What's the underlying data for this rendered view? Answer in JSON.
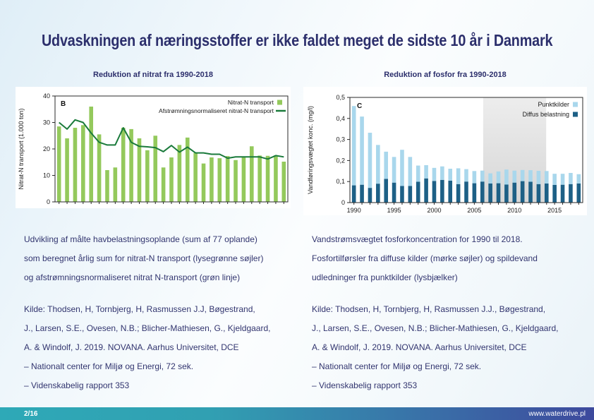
{
  "title": "Udvaskningen af næringsstoffer er ikke faldet meget de sidste 10 år i Danmark",
  "left": {
    "subtitle": "Reduktion af nitrat fra 1990-2018",
    "caption_lines": [
      "Udvikling af målte havbelastningsoplande (sum af 77 oplande)",
      "som beregnet årlig sum for nitrat-N transport (lysegrønne søjler)",
      "og afstrømningsnormaliseret nitrat N-transport (grøn linje)"
    ],
    "source_lines": [
      "Kilde: Thodsen, H, Tornbjerg, H, Rasmussen J.J, Bøgestrand,",
      "J., Larsen, S.E., Ovesen, N.B.; Blicher-Mathiesen, G., Kjeldgaard,",
      "A. & Windolf, J. 2019. NOVANA. Aarhus Universitet, DCE",
      "– Nationalt center for Miljø og Energi, 72 sek.",
      "– Videnskabelig rapport 353"
    ]
  },
  "right": {
    "subtitle": "Reduktion af fosfor fra 1990-2018",
    "caption_lines": [
      "Vandstrømsvægtet fosforkoncentration for 1990 til 2018.",
      "Fosfortilførsler fra diffuse kilder (mørke søjler) og spildevand",
      "udledninger fra punktkilder (lysbjælker)"
    ],
    "source_lines": [
      "Kilde: Thodsen, H, Tornbjerg, H, Rasmussen J.J., Bøgestrand,",
      "J., Larsen, S.E., Ovesen, N.B.; Blicher-Mathiesen, G., Kjeldgaard,",
      "A. & Windolf, J. 2019. NOVANA. Aarhus Universitet, DCE",
      "– Nationalt center for Miljø og Energi, 72 sek.",
      "– Videnskabelig rapport 353"
    ]
  },
  "footer": {
    "page": "2/16",
    "website": "www.waterdrive.pl"
  },
  "colors": {
    "title_navy": "#2c2f6c",
    "bar_green": "#94c95c",
    "line_green": "#1a7a3b",
    "punkt_lightblue": "#a9d7ec",
    "diffus_darkblue": "#1d6086",
    "band_gray": "#e2e2e2",
    "footer_teal": "#2ea9b7",
    "footer_indigo": "#3d499d",
    "axis": "#2a2a2a"
  },
  "chart_data": [
    {
      "id": "nitrat",
      "type": "bar",
      "panel_label": "B",
      "title": "Reduktion af nitrat fra 1990-2018",
      "xlabel": "",
      "ylabel": "Nitrat-N transport (1.000 ton)",
      "ylim": [
        0,
        40
      ],
      "yticks": [
        0,
        10,
        20,
        30,
        40
      ],
      "ytick_labels": [
        "0",
        "10",
        "20",
        "30",
        "40"
      ],
      "x": [
        1990,
        1991,
        1992,
        1993,
        1994,
        1995,
        1996,
        1997,
        1998,
        1999,
        2000,
        2001,
        2002,
        2003,
        2004,
        2005,
        2006,
        2007,
        2008,
        2009,
        2010,
        2011,
        2012,
        2013,
        2014,
        2015,
        2016,
        2017,
        2018
      ],
      "x_tick_labels_visible": false,
      "grid": false,
      "legend_position": "top-right",
      "series": [
        {
          "name": "Nitrat-N transport",
          "kind": "bar",
          "color": "#94c95c",
          "values": [
            28.5,
            24,
            28,
            29,
            36,
            25.5,
            12,
            13,
            28,
            27.5,
            24,
            19.5,
            25,
            13,
            16.8,
            21.5,
            24.3,
            18.5,
            14.5,
            16.8,
            16.5,
            17.3,
            15.8,
            17,
            21,
            17.5,
            17.4,
            17.6,
            15.2
          ]
        },
        {
          "name": "Afstrømningsnormaliseret nitrat-N transport",
          "kind": "line",
          "color": "#1a7a3b",
          "values": [
            30,
            27.5,
            31,
            30,
            26,
            22.5,
            21.5,
            21.5,
            28,
            22.5,
            21,
            20.8,
            20.5,
            19,
            21.3,
            18.8,
            20.7,
            18.5,
            18.5,
            18,
            18,
            16.5,
            17,
            17,
            17,
            17,
            16.2,
            17.5,
            17
          ]
        }
      ]
    },
    {
      "id": "fosfor",
      "type": "bar",
      "stacked": true,
      "panel_label": "C",
      "title": "Reduktion af fosfor fra 1990-2018",
      "xlabel": "",
      "ylabel": "Vandføringsvægtet konc. (mg/l)",
      "ylim": [
        0,
        0.5
      ],
      "yticks": [
        0,
        0.1,
        0.2,
        0.3,
        0.4,
        0.5
      ],
      "ytick_labels": [
        "0",
        "0,1",
        "0,2",
        "0,3",
        "0,4",
        "0,5"
      ],
      "x": [
        1990,
        1991,
        1992,
        1993,
        1994,
        1995,
        1996,
        1997,
        1998,
        1999,
        2000,
        2001,
        2002,
        2003,
        2004,
        2005,
        2006,
        2007,
        2008,
        2009,
        2010,
        2011,
        2012,
        2013,
        2014,
        2015,
        2016,
        2017,
        2018
      ],
      "xtick_label_years": [
        1990,
        1995,
        2000,
        2005,
        2010,
        2015
      ],
      "grid": false,
      "legend_position": "top-right",
      "legend_order": [
        1,
        0
      ],
      "highlight_band": {
        "from_year": 2006.6,
        "to_year": 2014.45,
        "color": "#e2e2e2"
      },
      "series": [
        {
          "name": "Diffus belastning",
          "kind": "bar-bottom",
          "color": "#1d6086",
          "values": [
            0.082,
            0.085,
            0.07,
            0.09,
            0.113,
            0.095,
            0.079,
            0.079,
            0.099,
            0.115,
            0.103,
            0.108,
            0.104,
            0.088,
            0.1,
            0.092,
            0.1,
            0.091,
            0.092,
            0.086,
            0.095,
            0.102,
            0.099,
            0.088,
            0.091,
            0.084,
            0.085,
            0.088,
            0.091
          ]
        },
        {
          "name": "Punktkilder",
          "kind": "bar-top",
          "color": "#a9d7ec",
          "values": [
            0.377,
            0.324,
            0.262,
            0.184,
            0.129,
            0.122,
            0.172,
            0.138,
            0.077,
            0.063,
            0.062,
            0.064,
            0.057,
            0.075,
            0.059,
            0.058,
            0.052,
            0.048,
            0.056,
            0.071,
            0.057,
            0.053,
            0.055,
            0.063,
            0.059,
            0.053,
            0.052,
            0.053,
            0.044
          ]
        }
      ]
    }
  ]
}
